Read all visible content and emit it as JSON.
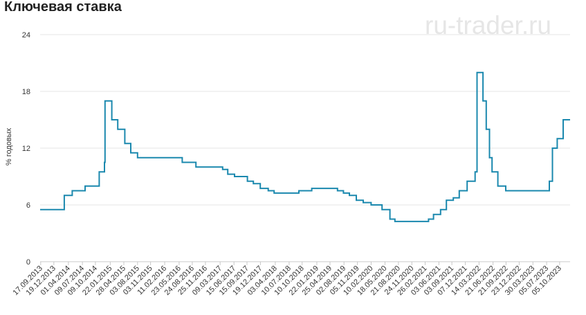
{
  "title": "Ключевая ставка",
  "watermark": "ru-trader.ru",
  "colors": {
    "line": "#1a88ae",
    "grid": "#e6e6e6",
    "axis": "#c8c8c8",
    "text": "#333333"
  },
  "chart_data": {
    "type": "line",
    "title": "Ключевая ставка",
    "xlabel": "",
    "ylabel": "% годовых",
    "ylim": [
      0,
      24
    ],
    "yticks": [
      0,
      6,
      12,
      18,
      24
    ],
    "xlim": [
      "2013-09-13",
      "2023-12-18"
    ],
    "grid": true,
    "legend": "none",
    "step": true,
    "x_ticks": [
      "17.09.2013",
      "19.12.2013",
      "01.04.2014",
      "09.07.2014",
      "09.10.2014",
      "22.01.2015",
      "28.04.2015",
      "03.08.2015",
      "03.11.2015",
      "11.02.2016",
      "23.05.2016",
      "24.08.2016",
      "25.11.2016",
      "09.03.2017",
      "15.06.2017",
      "15.09.2017",
      "19.12.2017",
      "03.04.2018",
      "10.07.2018",
      "10.10.2018",
      "22.01.2019",
      "25.04.2019",
      "02.08.2019",
      "05.11.2019",
      "10.02.2020",
      "18.05.2020",
      "21.08.2020",
      "24.11.2020",
      "26.02.2021",
      "03.06.2021",
      "03.09.2021",
      "07.12.2021",
      "14.03.2022",
      "21.06.2022",
      "21.09.2022",
      "23.12.2022",
      "30.03.2023",
      "05.07.2023",
      "05.10.2023"
    ],
    "series": [
      {
        "values": [
          [
            "2013-09-13",
            5.5
          ],
          [
            "2014-03-03",
            7.0
          ],
          [
            "2014-04-28",
            7.5
          ],
          [
            "2014-07-28",
            8.0
          ],
          [
            "2014-11-05",
            9.5
          ],
          [
            "2014-12-12",
            10.5
          ],
          [
            "2014-12-16",
            17.0
          ],
          [
            "2015-02-02",
            15.0
          ],
          [
            "2015-03-16",
            14.0
          ],
          [
            "2015-05-05",
            12.5
          ],
          [
            "2015-06-16",
            11.5
          ],
          [
            "2015-08-03",
            11.0
          ],
          [
            "2016-06-14",
            10.5
          ],
          [
            "2016-09-19",
            10.0
          ],
          [
            "2017-03-27",
            9.75
          ],
          [
            "2017-05-02",
            9.25
          ],
          [
            "2017-06-19",
            9.0
          ],
          [
            "2017-09-18",
            8.5
          ],
          [
            "2017-10-30",
            8.25
          ],
          [
            "2017-12-18",
            7.75
          ],
          [
            "2018-02-12",
            7.5
          ],
          [
            "2018-03-26",
            7.25
          ],
          [
            "2018-09-17",
            7.5
          ],
          [
            "2018-12-17",
            7.75
          ],
          [
            "2019-06-17",
            7.5
          ],
          [
            "2019-07-29",
            7.25
          ],
          [
            "2019-09-09",
            7.0
          ],
          [
            "2019-10-28",
            6.5
          ],
          [
            "2019-12-16",
            6.25
          ],
          [
            "2020-02-10",
            6.0
          ],
          [
            "2020-04-27",
            5.5
          ],
          [
            "2020-06-22",
            4.5
          ],
          [
            "2020-07-27",
            4.25
          ],
          [
            "2021-03-22",
            4.5
          ],
          [
            "2021-04-26",
            5.0
          ],
          [
            "2021-06-15",
            5.5
          ],
          [
            "2021-07-26",
            6.5
          ],
          [
            "2021-09-13",
            6.75
          ],
          [
            "2021-10-25",
            7.5
          ],
          [
            "2021-12-20",
            8.5
          ],
          [
            "2022-02-14",
            9.5
          ],
          [
            "2022-02-28",
            20.0
          ],
          [
            "2022-04-11",
            17.0
          ],
          [
            "2022-05-04",
            14.0
          ],
          [
            "2022-05-27",
            11.0
          ],
          [
            "2022-06-14",
            9.5
          ],
          [
            "2022-07-25",
            8.0
          ],
          [
            "2022-09-19",
            7.5
          ],
          [
            "2023-07-24",
            8.5
          ],
          [
            "2023-08-15",
            12.0
          ],
          [
            "2023-09-18",
            13.0
          ],
          [
            "2023-10-30",
            15.0
          ],
          [
            "2023-12-18",
            15.0
          ]
        ]
      }
    ]
  }
}
